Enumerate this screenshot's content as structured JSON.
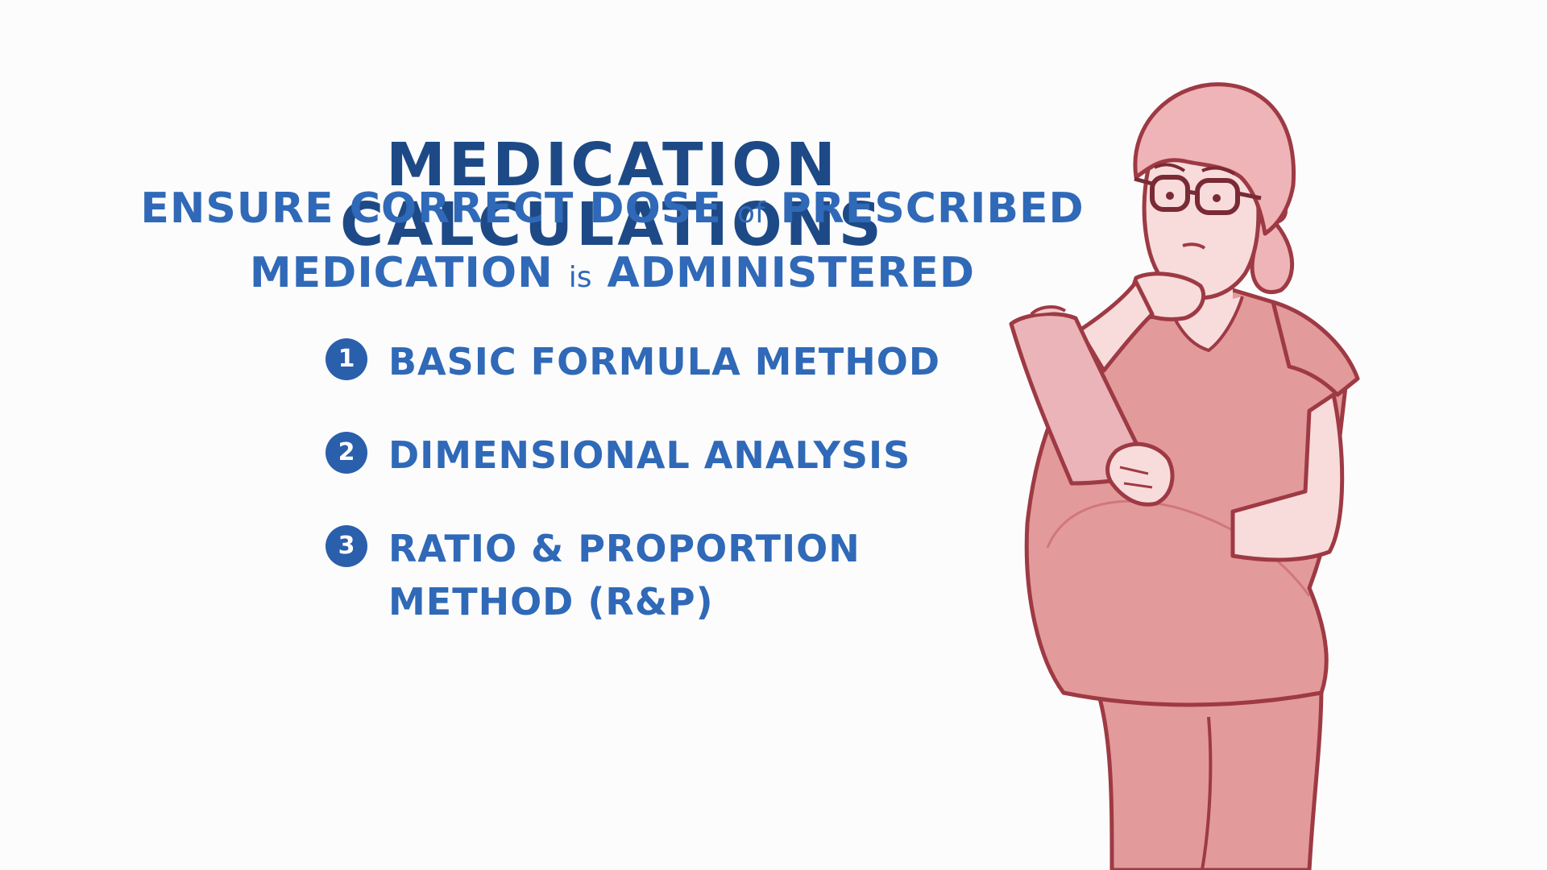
{
  "title": "MEDICATION CALCULATIONS",
  "subtitle": {
    "line1_a": "ENSURE CORRECT DOSE ",
    "line1_small": "of",
    "line1_b": " PRESCRIBED",
    "line2_a": "MEDICATION ",
    "line2_small": "is",
    "line2_b": " ADMINISTERED"
  },
  "methods": [
    {
      "number": "1",
      "lines": [
        "BASIC FORMULA METHOD"
      ]
    },
    {
      "number": "2",
      "lines": [
        "DIMENSIONAL ANALYSIS"
      ]
    },
    {
      "number": "3",
      "lines": [
        "RATIO & PROPORTION",
        "METHOD (R&P)"
      ]
    }
  ],
  "colors": {
    "title": "#1d4a86",
    "text": "#2f69b8",
    "badge": "#2a5fab",
    "scrubs": "#e39a9a",
    "outline": "#9e3a44",
    "skin": "#f8dcdc",
    "hair": "#efb4b8",
    "clipboard": "#eab4b8"
  },
  "illustration": {
    "subject": "pregnant-nurse-in-scrubs-holding-clipboard",
    "icon": "nurse-illustration"
  }
}
